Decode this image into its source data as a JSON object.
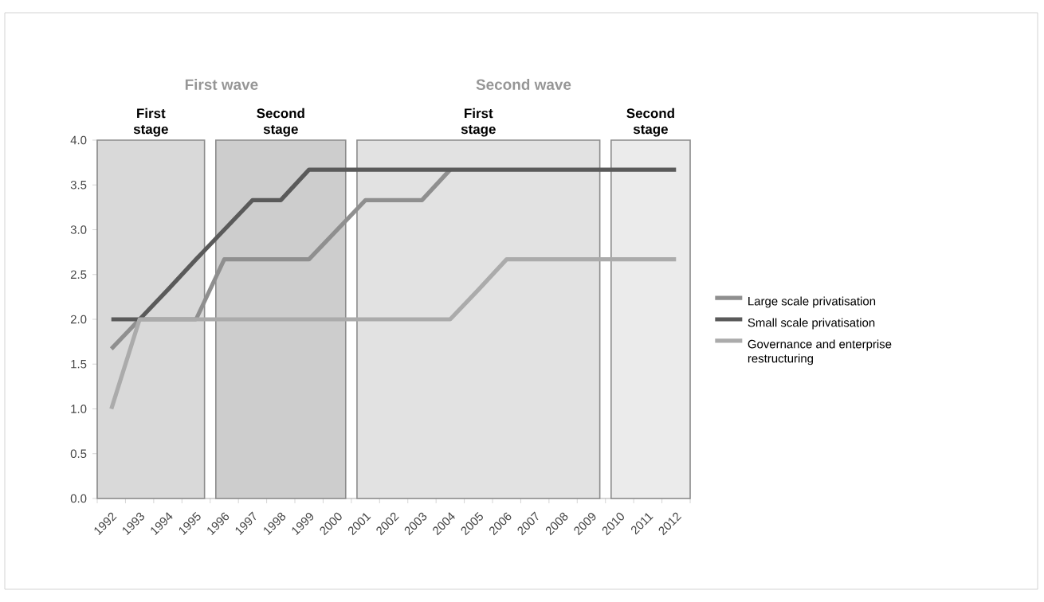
{
  "chart_data": {
    "type": "line",
    "categories": [
      "1992",
      "1993",
      "1994",
      "1995",
      "1996",
      "1997",
      "1998",
      "1999",
      "2000",
      "2001",
      "2002",
      "2003",
      "2004",
      "2005",
      "2006",
      "2007",
      "2008",
      "2009",
      "2010",
      "2011",
      "2012"
    ],
    "series": [
      {
        "name": "Large scale privatisation",
        "color": "#8f8f8f",
        "values": [
          1.67,
          2.0,
          2.0,
          2.0,
          2.67,
          2.67,
          2.67,
          2.67,
          3.0,
          3.33,
          3.33,
          3.33,
          3.67,
          null,
          null,
          null,
          null,
          null,
          null,
          null,
          null
        ]
      },
      {
        "name": "Small scale privatisation",
        "color": "#5a5a5a",
        "values": [
          2.0,
          2.0,
          2.33,
          2.67,
          3.0,
          3.33,
          3.33,
          3.67,
          3.67,
          3.67,
          3.67,
          3.67,
          3.67,
          3.67,
          3.67,
          3.67,
          3.67,
          3.67,
          3.67,
          3.67,
          3.67
        ]
      },
      {
        "name": "Governance and enterprise restructuring",
        "color": "#ababab",
        "values": [
          1.0,
          2.0,
          2.0,
          2.0,
          2.0,
          2.0,
          2.0,
          2.0,
          2.0,
          2.0,
          2.0,
          2.0,
          2.0,
          2.33,
          2.67,
          2.67,
          2.67,
          2.67,
          2.67,
          2.67,
          2.67
        ]
      }
    ],
    "ylim": [
      0,
      4.0
    ],
    "yticks": [
      {
        "value": 0,
        "label": "0.0"
      },
      {
        "value": 0.5,
        "label": "0.5"
      },
      {
        "value": 1,
        "label": "1.0"
      },
      {
        "value": 1.5,
        "label": "1.5"
      },
      {
        "value": 2,
        "label": "2.0"
      },
      {
        "value": 2.5,
        "label": "2.5"
      },
      {
        "value": 3,
        "label": "3.0"
      },
      {
        "value": 3.5,
        "label": "3.5"
      },
      {
        "value": 4,
        "label": "4.0"
      }
    ],
    "bands": [
      {
        "axis": "x",
        "from": "1992",
        "to": "1995",
        "label": "First stage",
        "color": "#d9d9d9"
      },
      {
        "axis": "x",
        "from": "1996",
        "to": "2000",
        "label": "Second stage",
        "color": "#cdcdcd"
      },
      {
        "axis": "x",
        "from": "2001",
        "to": "2009",
        "label": "First stage",
        "color": "#e2e2e2"
      },
      {
        "axis": "x",
        "from": "2010",
        "to": "2012",
        "label": "Second stage",
        "color": "#ebebeb"
      }
    ],
    "annotations": [
      "First wave",
      "Second wave"
    ],
    "grid": false,
    "legend": "right",
    "marker": "none",
    "line_style": "solid"
  }
}
